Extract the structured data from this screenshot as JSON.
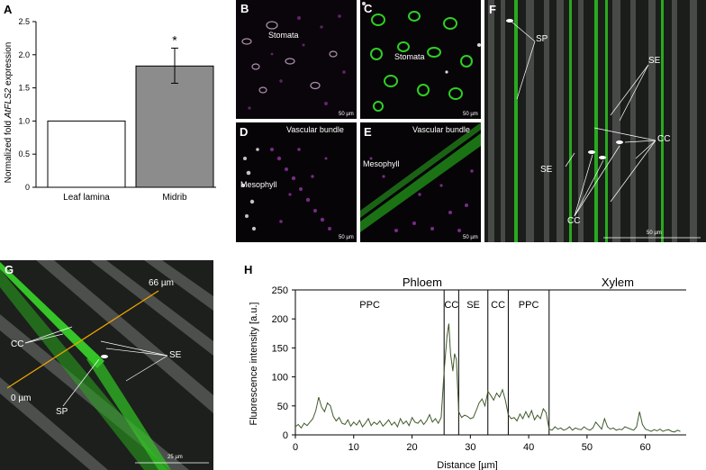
{
  "panels": {
    "a": "A",
    "b": "B",
    "c": "C",
    "d": "D",
    "e": "E",
    "f": "F",
    "g": "G",
    "h": "H"
  },
  "micro_labels": {
    "b_stomata": "Stomata",
    "c_stomata": "Stomata",
    "d_vascular": "Vascular bundle",
    "d_mesophyll": "Mesophyll",
    "e_vascular": "Vascular bundle",
    "e_mesophyll": "Mesophyll",
    "f_sp": "SP",
    "f_se1": "SE",
    "f_se2": "SE",
    "f_cc1": "CC",
    "f_cc2": "CC",
    "g_cc": "CC",
    "g_se": "SE",
    "g_sp": "SP",
    "g_start": "0 µm",
    "g_end": "66 µm"
  },
  "scale_bars": {
    "b": "50 µm",
    "c": "50 µm",
    "d": "50 µm",
    "e": "50 µm",
    "f": "50 µm",
    "g": "25 µm"
  },
  "colors": {
    "bar_leaf": "#ffffff",
    "bar_midrib": "#8c8c8c",
    "gfp": "#27c21f",
    "magenta": "#b43bc0",
    "trace": "#3f5a2c",
    "transect": "#f0a400"
  },
  "chart_data": [
    {
      "type": "bar",
      "ylabel": "Normalized fold AtFLS2 expression",
      "ylabel_parts": [
        "Normalized fold ",
        "AtFLS2",
        " expression"
      ],
      "categories": [
        "Leaf lamina",
        "Midrib"
      ],
      "values": [
        1.0,
        1.83
      ],
      "error_upper": [
        0,
        2.1
      ],
      "error_lower": [
        0,
        1.57
      ],
      "annotations": [
        "",
        "*"
      ],
      "ylim": [
        0,
        2.5
      ],
      "yticks": [
        "0",
        "0.5",
        "1.0",
        "1.5",
        "2.0",
        "2.5"
      ]
    },
    {
      "type": "line",
      "xlabel": "Distance [µm]",
      "ylabel": "Fluorescence intensity [a.u.]",
      "xlim": [
        0,
        67
      ],
      "ylim": [
        0,
        250
      ],
      "xticks": [
        "0",
        "10",
        "20",
        "30",
        "40",
        "50",
        "60"
      ],
      "yticks": [
        "0",
        "50",
        "100",
        "150",
        "200",
        "250"
      ],
      "regions": {
        "top": [
          {
            "label": "Phloem",
            "x_start": 0,
            "x_end": 43.5
          },
          {
            "label": "Xylem",
            "x_start": 43.5,
            "x_end": 67
          }
        ],
        "sub": [
          {
            "label": "PPC",
            "x_start": 0,
            "x_end": 25.5
          },
          {
            "label": "CC",
            "x_start": 25.5,
            "x_end": 28
          },
          {
            "label": "SE",
            "x_start": 28,
            "x_end": 33
          },
          {
            "label": "CC",
            "x_start": 33,
            "x_end": 36.5
          },
          {
            "label": "PPC",
            "x_start": 36.5,
            "x_end": 43.5
          }
        ]
      },
      "series": [
        {
          "x": [
            0,
            0.5,
            1,
            1.5,
            2,
            2.5,
            3,
            3.5,
            4,
            4.5,
            5,
            5.5,
            6,
            6.5,
            7,
            7.5,
            8,
            8.5,
            9,
            9.5,
            10,
            10.5,
            11,
            11.5,
            12,
            12.5,
            13,
            13.5,
            14,
            14.5,
            15,
            15.5,
            16,
            16.5,
            17,
            17.5,
            18,
            18.5,
            19,
            19.5,
            20,
            20.5,
            21,
            21.5,
            22,
            22.5,
            23,
            23.5,
            24,
            24.5,
            25,
            25.5,
            26,
            26.3,
            26.6,
            27,
            27.3,
            27.6,
            28,
            28.5,
            29,
            29.5,
            30,
            30.5,
            31,
            31.5,
            32,
            32.5,
            33,
            33.5,
            34,
            34.5,
            35,
            35.5,
            36,
            36.5,
            37,
            37.5,
            38,
            38.5,
            39,
            39.5,
            40,
            40.5,
            41,
            41.5,
            42,
            42.5,
            43,
            43.5,
            44,
            44.5,
            45,
            45.5,
            46,
            46.5,
            47,
            47.5,
            48,
            48.5,
            49,
            49.5,
            50,
            50.5,
            51,
            51.5,
            52,
            52.5,
            53,
            53.5,
            54,
            54.5,
            55,
            55.5,
            56,
            56.5,
            57,
            57.5,
            58,
            58.5,
            59,
            59.5,
            60,
            60.5,
            61,
            61.5,
            62,
            62.5,
            63,
            63.5,
            64,
            64.5,
            65,
            65.5,
            66
          ],
          "y": [
            14,
            18,
            12,
            20,
            16,
            22,
            28,
            42,
            65,
            48,
            40,
            55,
            50,
            32,
            24,
            30,
            20,
            18,
            26,
            15,
            22,
            17,
            25,
            14,
            20,
            28,
            16,
            22,
            18,
            24,
            15,
            20,
            26,
            17,
            22,
            14,
            28,
            19,
            24,
            16,
            30,
            22,
            20,
            26,
            18,
            24,
            35,
            22,
            28,
            20,
            30,
            110,
            170,
            192,
            140,
            110,
            140,
            130,
            40,
            30,
            34,
            32,
            28,
            30,
            42,
            55,
            62,
            50,
            75,
            68,
            60,
            72,
            65,
            78,
            60,
            35,
            28,
            30,
            24,
            36,
            28,
            40,
            30,
            42,
            26,
            34,
            28,
            45,
            38,
            10,
            8,
            14,
            10,
            12,
            8,
            10,
            14,
            8,
            12,
            10,
            9,
            14,
            10,
            8,
            12,
            22,
            16,
            10,
            28,
            14,
            10,
            12,
            8,
            10,
            9,
            14,
            12,
            10,
            8,
            14,
            40,
            18,
            10,
            8,
            6,
            9,
            7,
            10,
            6,
            8,
            9,
            6,
            5,
            8,
            6
          ]
        }
      ]
    }
  ]
}
